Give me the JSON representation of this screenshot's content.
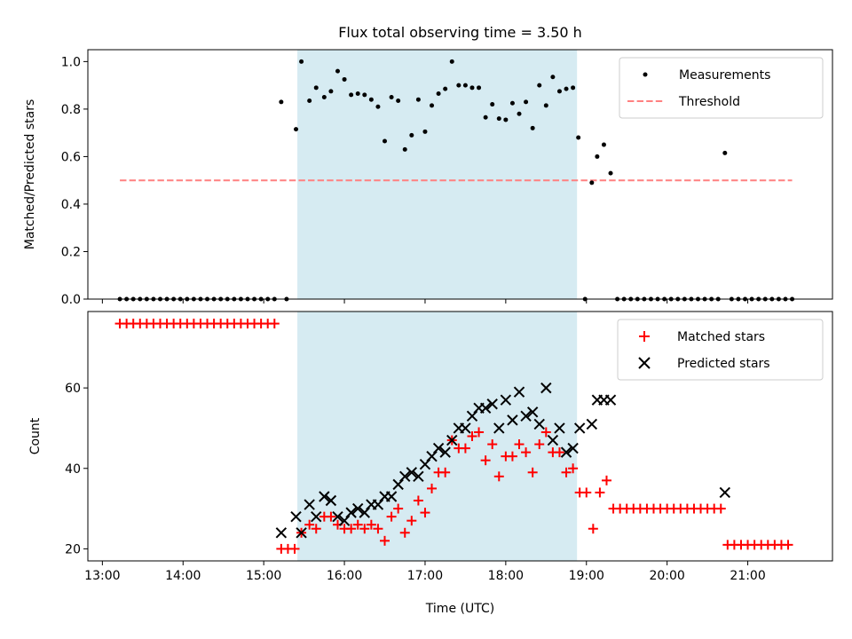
{
  "chart_data": [
    {
      "type": "scatter",
      "title": "Flux total observing time = 3.50 h",
      "xlabel": "",
      "ylabel": "Matched/Predicted stars",
      "ylim": [
        0,
        1.05
      ],
      "yticks": [
        "0.0",
        "0.2",
        "0.4",
        "0.6",
        "0.8",
        "1.0"
      ],
      "xlim_hours": [
        12.82,
        22.05
      ],
      "xticks": [
        "13:00",
        "14:00",
        "15:00",
        "16:00",
        "17:00",
        "18:00",
        "19:00",
        "20:00",
        "21:00"
      ],
      "highlight_span": {
        "start": "15:25",
        "end": "18:53",
        "color": "#add8e6"
      },
      "legend": {
        "position": "top-right",
        "entries": [
          "Measurements",
          "Threshold"
        ]
      },
      "series": [
        {
          "name": "Measurements",
          "marker": "dot",
          "color": "#000000",
          "points": [
            [
              "13:13",
              0
            ],
            [
              "13:18",
              0
            ],
            [
              "13:23",
              0
            ],
            [
              "13:28",
              0
            ],
            [
              "13:33",
              0
            ],
            [
              "13:38",
              0
            ],
            [
              "13:43",
              0
            ],
            [
              "13:48",
              0
            ],
            [
              "13:53",
              0
            ],
            [
              "13:58",
              0
            ],
            [
              "14:03",
              0
            ],
            [
              "14:08",
              0
            ],
            [
              "14:13",
              0
            ],
            [
              "14:18",
              0
            ],
            [
              "14:23",
              0
            ],
            [
              "14:28",
              0
            ],
            [
              "14:33",
              0
            ],
            [
              "14:38",
              0
            ],
            [
              "14:43",
              0
            ],
            [
              "14:48",
              0
            ],
            [
              "14:53",
              0
            ],
            [
              "14:58",
              0
            ],
            [
              "15:03",
              0
            ],
            [
              "15:08",
              0
            ],
            [
              "15:13",
              0.83
            ],
            [
              "15:17",
              0
            ],
            [
              "15:24",
              0.715
            ],
            [
              "15:28",
              1.0
            ],
            [
              "15:34",
              0.835
            ],
            [
              "15:39",
              0.89
            ],
            [
              "15:45",
              0.85
            ],
            [
              "15:50",
              0.875
            ],
            [
              "15:55",
              0.96
            ],
            [
              "16:00",
              0.925
            ],
            [
              "16:05",
              0.86
            ],
            [
              "16:10",
              0.865
            ],
            [
              "16:15",
              0.86
            ],
            [
              "16:20",
              0.84
            ],
            [
              "16:25",
              0.81
            ],
            [
              "16:30",
              0.665
            ],
            [
              "16:35",
              0.85
            ],
            [
              "16:40",
              0.835
            ],
            [
              "16:45",
              0.63
            ],
            [
              "16:50",
              0.69
            ],
            [
              "16:55",
              0.84
            ],
            [
              "17:00",
              0.705
            ],
            [
              "17:05",
              0.815
            ],
            [
              "17:10",
              0.865
            ],
            [
              "17:15",
              0.885
            ],
            [
              "17:20",
              1.0
            ],
            [
              "17:25",
              0.9
            ],
            [
              "17:30",
              0.9
            ],
            [
              "17:35",
              0.89
            ],
            [
              "17:40",
              0.89
            ],
            [
              "17:45",
              0.765
            ],
            [
              "17:50",
              0.82
            ],
            [
              "17:55",
              0.76
            ],
            [
              "18:00",
              0.755
            ],
            [
              "18:05",
              0.825
            ],
            [
              "18:10",
              0.78
            ],
            [
              "18:15",
              0.83
            ],
            [
              "18:20",
              0.72
            ],
            [
              "18:25",
              0.9
            ],
            [
              "18:30",
              0.815
            ],
            [
              "18:35",
              0.935
            ],
            [
              "18:40",
              0.875
            ],
            [
              "18:45",
              0.885
            ],
            [
              "18:50",
              0.89
            ],
            [
              "18:54",
              0.68
            ],
            [
              "18:59",
              0
            ],
            [
              "19:04",
              0.49
            ],
            [
              "19:08",
              0.6
            ],
            [
              "19:13",
              0.65
            ],
            [
              "19:18",
              0.53
            ],
            [
              "19:23",
              0
            ],
            [
              "19:28",
              0
            ],
            [
              "19:33",
              0
            ],
            [
              "19:38",
              0
            ],
            [
              "19:43",
              0
            ],
            [
              "19:48",
              0
            ],
            [
              "19:53",
              0
            ],
            [
              "19:58",
              0
            ],
            [
              "20:03",
              0
            ],
            [
              "20:08",
              0
            ],
            [
              "20:13",
              0
            ],
            [
              "20:18",
              0
            ],
            [
              "20:23",
              0
            ],
            [
              "20:28",
              0
            ],
            [
              "20:33",
              0
            ],
            [
              "20:38",
              0
            ],
            [
              "20:43",
              0.615
            ],
            [
              "20:48",
              0
            ],
            [
              "20:53",
              0
            ],
            [
              "20:58",
              0
            ],
            [
              "21:03",
              0
            ],
            [
              "21:08",
              0
            ],
            [
              "21:13",
              0
            ],
            [
              "21:18",
              0
            ],
            [
              "21:23",
              0
            ],
            [
              "21:28",
              0
            ],
            [
              "21:33",
              0
            ]
          ]
        },
        {
          "name": "Threshold",
          "style": "dashed",
          "color": "#ff8080",
          "points": [
            [
              "13:13",
              0.5
            ],
            [
              "21:33",
              0.5
            ]
          ]
        }
      ]
    },
    {
      "type": "scatter",
      "title": "",
      "xlabel": "Time (UTC)",
      "ylabel": "Count",
      "ylim": [
        17,
        79
      ],
      "yticks": [
        "20",
        "40",
        "60"
      ],
      "xlim_hours": [
        12.82,
        22.05
      ],
      "xticks": [
        "13:00",
        "14:00",
        "15:00",
        "16:00",
        "17:00",
        "18:00",
        "19:00",
        "20:00",
        "21:00"
      ],
      "highlight_span": {
        "start": "15:25",
        "end": "18:53",
        "color": "#add8e6"
      },
      "legend": {
        "position": "top-right",
        "entries": [
          "Matched stars",
          "Predicted stars"
        ]
      },
      "series": [
        {
          "name": "Matched stars",
          "marker": "plus",
          "color": "#ff0000",
          "points": [
            [
              "13:13",
              76
            ],
            [
              "13:18",
              76
            ],
            [
              "13:23",
              76
            ],
            [
              "13:28",
              76
            ],
            [
              "13:33",
              76
            ],
            [
              "13:38",
              76
            ],
            [
              "13:43",
              76
            ],
            [
              "13:48",
              76
            ],
            [
              "13:53",
              76
            ],
            [
              "13:58",
              76
            ],
            [
              "14:03",
              76
            ],
            [
              "14:08",
              76
            ],
            [
              "14:13",
              76
            ],
            [
              "14:18",
              76
            ],
            [
              "14:23",
              76
            ],
            [
              "14:28",
              76
            ],
            [
              "14:33",
              76
            ],
            [
              "14:38",
              76
            ],
            [
              "14:43",
              76
            ],
            [
              "14:48",
              76
            ],
            [
              "14:53",
              76
            ],
            [
              "14:58",
              76
            ],
            [
              "15:03",
              76
            ],
            [
              "15:08",
              76
            ],
            [
              "15:13",
              20
            ],
            [
              "15:18",
              20
            ],
            [
              "15:23",
              20
            ],
            [
              "15:28",
              24
            ],
            [
              "15:34",
              26
            ],
            [
              "15:39",
              25
            ],
            [
              "15:45",
              28
            ],
            [
              "15:50",
              28
            ],
            [
              "15:55",
              26
            ],
            [
              "16:00",
              25
            ],
            [
              "16:05",
              25
            ],
            [
              "16:10",
              26
            ],
            [
              "16:15",
              25
            ],
            [
              "16:20",
              26
            ],
            [
              "16:25",
              25
            ],
            [
              "16:30",
              22
            ],
            [
              "16:35",
              28
            ],
            [
              "16:40",
              30
            ],
            [
              "16:45",
              24
            ],
            [
              "16:50",
              27
            ],
            [
              "16:55",
              32
            ],
            [
              "17:00",
              29
            ],
            [
              "17:05",
              35
            ],
            [
              "17:10",
              39
            ],
            [
              "17:15",
              39
            ],
            [
              "17:20",
              47
            ],
            [
              "17:25",
              45
            ],
            [
              "17:30",
              45
            ],
            [
              "17:35",
              48
            ],
            [
              "17:40",
              49
            ],
            [
              "17:45",
              42
            ],
            [
              "17:50",
              46
            ],
            [
              "17:55",
              38
            ],
            [
              "18:00",
              43
            ],
            [
              "18:05",
              43
            ],
            [
              "18:10",
              46
            ],
            [
              "18:15",
              44
            ],
            [
              "18:20",
              39
            ],
            [
              "18:25",
              46
            ],
            [
              "18:30",
              49
            ],
            [
              "18:35",
              44
            ],
            [
              "18:40",
              44
            ],
            [
              "18:45",
              39
            ],
            [
              "18:50",
              40
            ],
            [
              "18:55",
              34
            ],
            [
              "19:00",
              34
            ],
            [
              "19:05",
              25
            ],
            [
              "19:10",
              34
            ],
            [
              "19:15",
              37
            ],
            [
              "19:20",
              30
            ],
            [
              "19:25",
              30
            ],
            [
              "19:30",
              30
            ],
            [
              "19:35",
              30
            ],
            [
              "19:40",
              30
            ],
            [
              "19:45",
              30
            ],
            [
              "19:50",
              30
            ],
            [
              "19:55",
              30
            ],
            [
              "20:00",
              30
            ],
            [
              "20:05",
              30
            ],
            [
              "20:10",
              30
            ],
            [
              "20:15",
              30
            ],
            [
              "20:20",
              30
            ],
            [
              "20:25",
              30
            ],
            [
              "20:30",
              30
            ],
            [
              "20:35",
              30
            ],
            [
              "20:40",
              30
            ],
            [
              "20:45",
              21
            ],
            [
              "20:50",
              21
            ],
            [
              "20:55",
              21
            ],
            [
              "21:00",
              21
            ],
            [
              "21:05",
              21
            ],
            [
              "21:10",
              21
            ],
            [
              "21:15",
              21
            ],
            [
              "21:20",
              21
            ],
            [
              "21:25",
              21
            ],
            [
              "21:30",
              21
            ]
          ]
        },
        {
          "name": "Predicted stars",
          "marker": "x",
          "color": "#000000",
          "points": [
            [
              "15:13",
              24
            ],
            [
              "15:24",
              28
            ],
            [
              "15:28",
              24
            ],
            [
              "15:34",
              31
            ],
            [
              "15:39",
              28
            ],
            [
              "15:45",
              33
            ],
            [
              "15:50",
              32
            ],
            [
              "15:55",
              28
            ],
            [
              "16:00",
              27
            ],
            [
              "16:05",
              29
            ],
            [
              "16:10",
              30
            ],
            [
              "16:15",
              29
            ],
            [
              "16:20",
              31
            ],
            [
              "16:25",
              31
            ],
            [
              "16:30",
              33
            ],
            [
              "16:35",
              33
            ],
            [
              "16:40",
              36
            ],
            [
              "16:45",
              38
            ],
            [
              "16:50",
              39
            ],
            [
              "16:55",
              38
            ],
            [
              "17:00",
              41
            ],
            [
              "17:05",
              43
            ],
            [
              "17:10",
              45
            ],
            [
              "17:15",
              44
            ],
            [
              "17:20",
              47
            ],
            [
              "17:25",
              50
            ],
            [
              "17:30",
              50
            ],
            [
              "17:35",
              53
            ],
            [
              "17:40",
              55
            ],
            [
              "17:45",
              55
            ],
            [
              "17:50",
              56
            ],
            [
              "17:55",
              50
            ],
            [
              "18:00",
              57
            ],
            [
              "18:05",
              52
            ],
            [
              "18:10",
              59
            ],
            [
              "18:15",
              53
            ],
            [
              "18:20",
              54
            ],
            [
              "18:25",
              51
            ],
            [
              "18:30",
              60
            ],
            [
              "18:35",
              47
            ],
            [
              "18:40",
              50
            ],
            [
              "18:45",
              44
            ],
            [
              "18:50",
              45
            ],
            [
              "18:55",
              50
            ],
            [
              "19:04",
              51
            ],
            [
              "19:08",
              57
            ],
            [
              "19:13",
              57
            ],
            [
              "19:18",
              57
            ],
            [
              "20:43",
              34
            ]
          ]
        }
      ]
    }
  ]
}
